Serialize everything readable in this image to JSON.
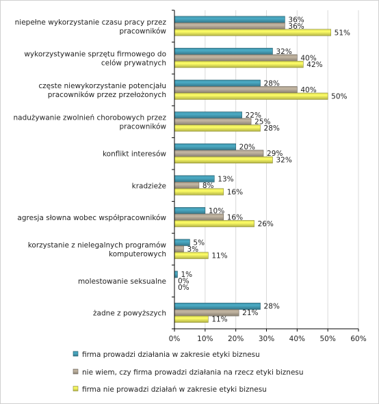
{
  "chart_data": {
    "type": "bar",
    "orientation": "horizontal",
    "categories": [
      [
        "niepełne wykorzystanie czasu pracy przez",
        "pracowników"
      ],
      [
        "wykorzystywanie sprzętu firmowego do",
        "celów prywatnych"
      ],
      [
        "częste niewykorzystanie potencjału",
        "pracowników przez przełożonych"
      ],
      [
        "nadużywanie zwolnień chorobowych przez",
        "pracowników"
      ],
      [
        "konflikt interesów"
      ],
      [
        "kradzieże"
      ],
      [
        "agresja słowna wobec współpracowników"
      ],
      [
        "korzystanie z nielegalnych programów",
        "komputerowych"
      ],
      [
        "molestowanie seksualne"
      ],
      [
        "żadne z powyższych"
      ]
    ],
    "series": [
      {
        "name": "firma prowadzi działania w zakresie etyki biznesu",
        "values": [
          36,
          32,
          28,
          22,
          20,
          13,
          10,
          5,
          1,
          28
        ],
        "labels": [
          "36%",
          "32%",
          "28%",
          "22%",
          "20%",
          "13%",
          "10%",
          "5%",
          "1%",
          "28%"
        ],
        "color": "#4bacc6"
      },
      {
        "name": "nie wiem, czy firma prowadzi działania na rzecz etyki biznesu",
        "values": [
          36,
          40,
          40,
          25,
          29,
          8,
          16,
          3,
          0,
          21
        ],
        "labels": [
          "36%",
          "40%",
          "40%",
          "25%",
          "29%",
          "8%",
          "16%",
          "3%",
          "0%",
          "21%"
        ],
        "color": "#c4b7a3"
      },
      {
        "name": "firma nie prowadzi działań w zakresie etyki biznesu",
        "values": [
          51,
          42,
          50,
          28,
          32,
          16,
          26,
          11,
          0,
          11
        ],
        "labels": [
          "51%",
          "42%",
          "50%",
          "28%",
          "32%",
          "16%",
          "26%",
          "11%",
          "0%",
          "11%"
        ],
        "color": "#ffff66"
      }
    ],
    "xlim": [
      0,
      60
    ],
    "xticks": [
      0,
      10,
      20,
      30,
      40,
      50,
      60
    ],
    "xtick_labels": [
      "0%",
      "10%",
      "20%",
      "30%",
      "40%",
      "50%",
      "60%"
    ],
    "grid": true,
    "legend_position": "bottom",
    "border_color": "#000000",
    "grid_color": "#d9d9d9"
  }
}
